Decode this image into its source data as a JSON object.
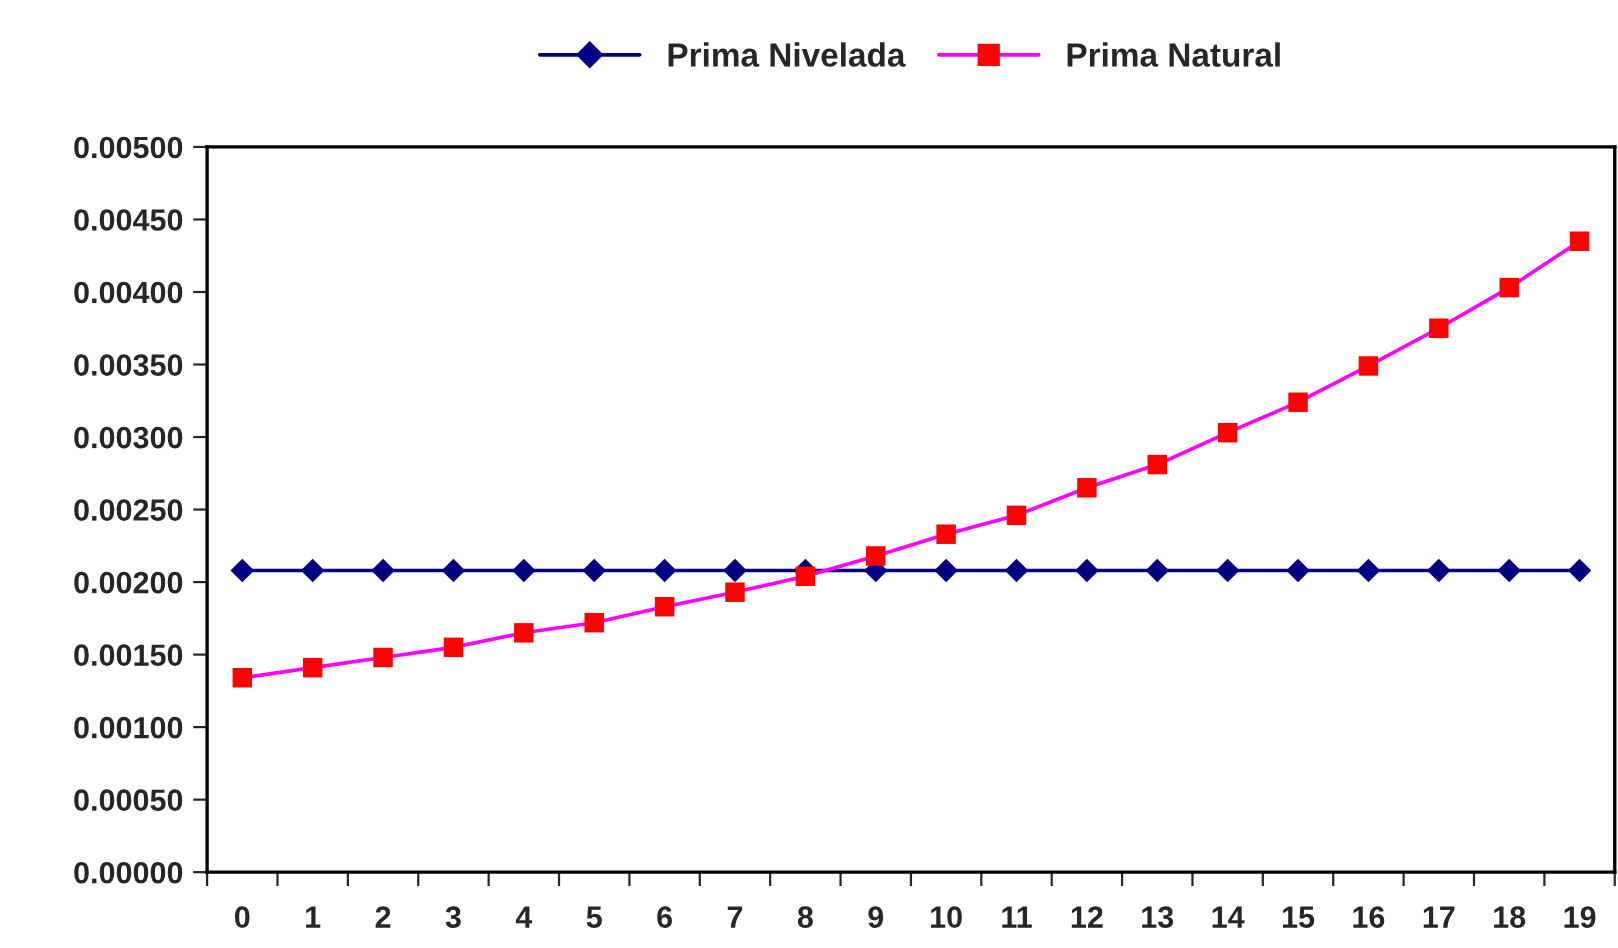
{
  "chart_data": {
    "type": "line",
    "categories": [
      "0",
      "1",
      "2",
      "3",
      "4",
      "5",
      "6",
      "7",
      "8",
      "9",
      "10",
      "11",
      "12",
      "13",
      "14",
      "15",
      "16",
      "17",
      "18",
      "19"
    ],
    "series": [
      {
        "name": "Prima Nivelada",
        "color": "#000080",
        "marker": "diamond",
        "values": [
          0.00208,
          0.00208,
          0.00208,
          0.00208,
          0.00208,
          0.00208,
          0.00208,
          0.00208,
          0.00208,
          0.00208,
          0.00208,
          0.00208,
          0.00208,
          0.00208,
          0.00208,
          0.00208,
          0.00208,
          0.00208,
          0.00208,
          0.00208
        ]
      },
      {
        "name": "Prima Natural",
        "color": "#ff00ff",
        "colors": [
          "#ff0000",
          "#ff0000",
          "#ff0000",
          "#ff0000",
          "#ff0000",
          "#ff0000",
          "#ff0000",
          "#ff0000",
          "#ff0000",
          "#ff0000",
          "#ff0000",
          "#ff0000",
          "#ff0000",
          "#ff0000",
          "#ff0000",
          "#ff0000",
          "#ff0000",
          "#ff0000",
          "#ff0000",
          "#ff0000"
        ],
        "marker": "square",
        "values": [
          0.00134,
          0.00141,
          0.00148,
          0.00155,
          0.00165,
          0.00172,
          0.00183,
          0.00193,
          0.00204,
          0.00218,
          0.00233,
          0.00246,
          0.00265,
          0.00281,
          0.00303,
          0.00324,
          0.00349,
          0.00375,
          0.00403,
          0.00435
        ]
      }
    ],
    "ylim": [
      0,
      0.005
    ],
    "yticks": [
      {
        "value": 0,
        "label": "0.00000"
      },
      {
        "value": 0.0005,
        "label": "0.00050"
      },
      {
        "value": 0.001,
        "label": "0.00100"
      },
      {
        "value": 0.0015,
        "label": "0.00150"
      },
      {
        "value": 0.002,
        "label": "0.00200"
      },
      {
        "value": 0.0025,
        "label": "0.00250"
      },
      {
        "value": 0.003,
        "label": "0.00300"
      },
      {
        "value": 0.0035,
        "label": "0.00350"
      },
      {
        "value": 0.004,
        "label": "0.00400"
      },
      {
        "value": 0.0045,
        "label": "0.00450"
      },
      {
        "value": 0.005,
        "label": "0.00500"
      }
    ],
    "grid": false,
    "legend": "top"
  }
}
